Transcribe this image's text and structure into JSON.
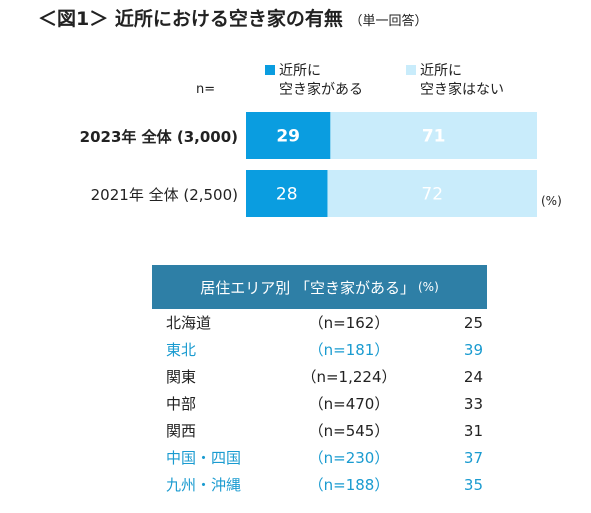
{
  "title": "＜図1＞ 近所における空き家の有無",
  "subtitle": "（単一回答）",
  "n_label": "n=",
  "colors": {
    "has": "#0a9de0",
    "none": "#c9ecfb",
    "table_header": "#2e7fa6",
    "highlight": "#1a9bd0"
  },
  "chart_data": {
    "type": "bar",
    "orientation": "horizontal",
    "stacked": true,
    "unit": "(%)",
    "categories": [
      "2023年 全体 (3,000)",
      "2021年 全体 (2,500)"
    ],
    "series": [
      {
        "name": "近所に\n空き家がある",
        "values": [
          29,
          28
        ]
      },
      {
        "name": "近所に\n空き家はない",
        "values": [
          71,
          72
        ]
      }
    ],
    "xlim": [
      0,
      100
    ]
  },
  "table": {
    "header": "居住エリア別 「空き家がある」",
    "unit": "(%)",
    "rows": [
      {
        "region": "北海道",
        "n": "（n=162）",
        "value": "25",
        "highlight": false
      },
      {
        "region": "東北",
        "n": "（n=181）",
        "value": "39",
        "highlight": true
      },
      {
        "region": "関東",
        "n": "（n=1,224）",
        "value": "24",
        "highlight": false
      },
      {
        "region": "中部",
        "n": "（n=470）",
        "value": "33",
        "highlight": false
      },
      {
        "region": "関西",
        "n": "（n=545）",
        "value": "31",
        "highlight": false
      },
      {
        "region": "中国・四国",
        "n": "（n=230）",
        "value": "37",
        "highlight": true
      },
      {
        "region": "九州・沖縄",
        "n": "（n=188）",
        "value": "35",
        "highlight": true
      }
    ]
  }
}
